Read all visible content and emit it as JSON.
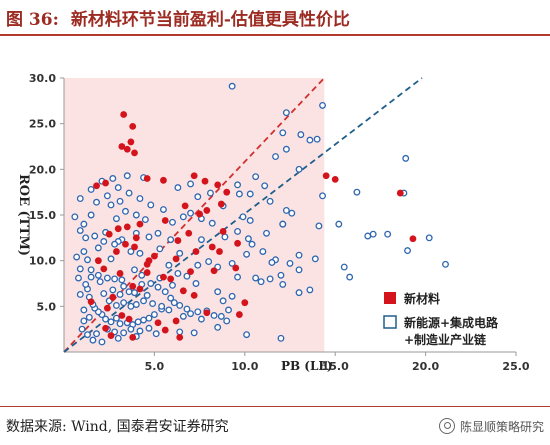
{
  "header": {
    "figure_label": "图 36:",
    "title": "新材料环节当前盈利-估值更具性价比"
  },
  "footer": {
    "source": "数据来源: Wind, 国泰君安证券研究",
    "watermark": "陈显顺策略研究"
  },
  "colors": {
    "new_material": "#d4141c",
    "new_energy": "#2f66b0",
    "shade": "#fbe3e3",
    "red_line": "#d03030",
    "blue_line": "#1f5f8b"
  },
  "chart_data": {
    "type": "scatter",
    "title": "",
    "xlabel": "PB (LF)",
    "ylabel": "ROE (TTM)",
    "xlim": [
      0,
      25
    ],
    "ylim": [
      0,
      30
    ],
    "x_ticks": [
      "5.0",
      "10.0",
      "15.0",
      "20.0",
      "25.0"
    ],
    "y_ticks": [
      "5.0",
      "10.0",
      "15.0",
      "20.0",
      "25.0",
      "30.0"
    ],
    "legend": {
      "placement": "bottom-right"
    },
    "series": [
      {
        "name": "新材料",
        "marker": "filled-square",
        "points": [
          [
            3.3,
            26.0
          ],
          [
            3.8,
            24.7
          ],
          [
            3.5,
            22.2
          ],
          [
            3.9,
            21.8
          ],
          [
            3.7,
            23.0
          ],
          [
            3.2,
            22.5
          ],
          [
            1.8,
            18.2
          ],
          [
            2.3,
            18.5
          ],
          [
            4.6,
            19.0
          ],
          [
            5.5,
            18.8
          ],
          [
            7.2,
            19.3
          ],
          [
            7.8,
            18.7
          ],
          [
            8.5,
            18.3
          ],
          [
            9.0,
            17.5
          ],
          [
            6.7,
            16.0
          ],
          [
            7.9,
            15.5
          ],
          [
            8.7,
            16.2
          ],
          [
            7.5,
            15.1
          ],
          [
            5.6,
            14.4
          ],
          [
            4.2,
            14.0
          ],
          [
            3.5,
            13.7
          ],
          [
            3.0,
            13.5
          ],
          [
            2.5,
            12.9
          ],
          [
            4.0,
            12.5
          ],
          [
            3.4,
            11.8
          ],
          [
            3.9,
            11.5
          ],
          [
            2.9,
            11.0
          ],
          [
            5.0,
            10.5
          ],
          [
            4.7,
            10.0
          ],
          [
            6.3,
            12.2
          ],
          [
            6.9,
            13.0
          ],
          [
            7.3,
            11.0
          ],
          [
            8.2,
            11.5
          ],
          [
            8.8,
            13.2
          ],
          [
            8.6,
            11.0
          ],
          [
            9.6,
            11.9
          ],
          [
            6.2,
            10.2
          ],
          [
            1.9,
            10.0
          ],
          [
            2.2,
            9.1
          ],
          [
            3.1,
            8.6
          ],
          [
            4.6,
            8.7
          ],
          [
            5.5,
            8.2
          ],
          [
            5.9,
            8.0
          ],
          [
            7.0,
            8.8
          ],
          [
            8.3,
            8.9
          ],
          [
            9.5,
            9.2
          ],
          [
            3.8,
            7.2
          ],
          [
            6.6,
            6.7
          ],
          [
            7.2,
            6.2
          ],
          [
            4.2,
            6.9
          ],
          [
            2.7,
            6.0
          ],
          [
            1.5,
            5.5
          ],
          [
            2.4,
            4.8
          ],
          [
            3.2,
            4.0
          ],
          [
            3.6,
            3.6
          ],
          [
            5.2,
            3.2
          ],
          [
            6.2,
            3.4
          ],
          [
            7.9,
            4.3
          ],
          [
            9.7,
            4.1
          ],
          [
            10.0,
            5.4
          ],
          [
            3.8,
            1.6
          ],
          [
            6.4,
            1.6
          ],
          [
            2.6,
            1.8
          ],
          [
            2.3,
            2.6
          ],
          [
            5.6,
            2.4
          ],
          [
            4.6,
            9.6
          ],
          [
            14.5,
            19.3
          ],
          [
            18.6,
            17.4
          ],
          [
            19.3,
            12.4
          ],
          [
            15.0,
            18.9
          ]
        ]
      },
      {
        "name": "新能源+集成电路+制造业产业链",
        "marker": "hollow-circle",
        "points": [
          [
            9.3,
            29.1
          ],
          [
            12.3,
            26.2
          ],
          [
            13.1,
            23.8
          ],
          [
            14.3,
            27.0
          ],
          [
            14.0,
            23.3
          ],
          [
            12.1,
            24.0
          ],
          [
            13.6,
            23.2
          ],
          [
            12.3,
            22.2
          ],
          [
            11.7,
            21.4
          ],
          [
            13.0,
            20.0
          ],
          [
            10.6,
            19.2
          ],
          [
            9.6,
            18.3
          ],
          [
            11.4,
            16.5
          ],
          [
            10.3,
            17.3
          ],
          [
            8.8,
            16.0
          ],
          [
            9.9,
            14.8
          ],
          [
            12.1,
            14.0
          ],
          [
            10.3,
            14.4
          ],
          [
            12.3,
            15.5
          ],
          [
            14.3,
            17.1
          ],
          [
            16.2,
            17.5
          ],
          [
            18.9,
            21.2
          ],
          [
            18.8,
            17.4
          ],
          [
            17.9,
            12.9
          ],
          [
            16.8,
            12.7
          ],
          [
            15.2,
            14.0
          ],
          [
            14.1,
            13.8
          ],
          [
            12.1,
            14.0
          ],
          [
            9.6,
            13.2
          ],
          [
            10.4,
            11.8
          ],
          [
            11.0,
            11.0
          ],
          [
            11.7,
            10.1
          ],
          [
            13.0,
            10.6
          ],
          [
            12.5,
            9.7
          ],
          [
            10.1,
            10.7
          ],
          [
            9.3,
            9.7
          ],
          [
            13.0,
            9.0
          ],
          [
            10.9,
            7.7
          ],
          [
            13.0,
            6.5
          ],
          [
            8.5,
            6.6
          ],
          [
            7.3,
            7.5
          ],
          [
            6.3,
            8.6
          ],
          [
            5.8,
            9.5
          ],
          [
            5.3,
            11.3
          ],
          [
            5.2,
            13.0
          ],
          [
            4.7,
            12.6
          ],
          [
            4.0,
            13.0
          ],
          [
            3.2,
            12.3
          ],
          [
            3.0,
            12.1
          ],
          [
            2.8,
            11.8
          ],
          [
            3.7,
            11.0
          ],
          [
            4.2,
            10.8
          ],
          [
            2.6,
            10.2
          ],
          [
            1.9,
            11.4
          ],
          [
            2.2,
            12.1
          ],
          [
            1.2,
            12.5
          ],
          [
            1.1,
            11.0
          ],
          [
            1.3,
            10.1
          ],
          [
            0.9,
            9.1
          ],
          [
            1.5,
            9.0
          ],
          [
            1.9,
            8.4
          ],
          [
            2.0,
            7.7
          ],
          [
            2.4,
            8.1
          ],
          [
            2.8,
            8.0
          ],
          [
            3.2,
            7.9
          ],
          [
            3.3,
            7.2
          ],
          [
            3.6,
            6.6
          ],
          [
            3.9,
            6.5
          ],
          [
            4.3,
            7.4
          ],
          [
            4.8,
            7.5
          ],
          [
            5.2,
            7.1
          ],
          [
            5.6,
            6.6
          ],
          [
            5.9,
            5.9
          ],
          [
            6.1,
            5.4
          ],
          [
            6.4,
            5.1
          ],
          [
            6.8,
            4.7
          ],
          [
            7.0,
            4.2
          ],
          [
            7.4,
            4.4
          ],
          [
            7.9,
            4.5
          ],
          [
            8.3,
            4.0
          ],
          [
            8.7,
            3.9
          ],
          [
            9.1,
            4.6
          ],
          [
            8.8,
            5.6
          ],
          [
            9.3,
            6.1
          ],
          [
            5.4,
            4.7
          ],
          [
            5.0,
            4.1
          ],
          [
            4.7,
            3.7
          ],
          [
            4.4,
            3.5
          ],
          [
            4.1,
            3.3
          ],
          [
            3.8,
            3.0
          ],
          [
            3.5,
            3.2
          ],
          [
            3.1,
            3.1
          ],
          [
            2.9,
            3.7
          ],
          [
            2.6,
            3.3
          ],
          [
            2.3,
            3.6
          ],
          [
            2.1,
            4.1
          ],
          [
            1.9,
            4.4
          ],
          [
            1.7,
            4.8
          ],
          [
            1.6,
            5.2
          ],
          [
            1.4,
            6.0
          ],
          [
            1.3,
            6.9
          ],
          [
            1.2,
            7.4
          ],
          [
            1.5,
            8.2
          ],
          [
            2.5,
            5.6
          ],
          [
            2.9,
            5.1
          ],
          [
            3.3,
            5.4
          ],
          [
            3.7,
            5.0
          ],
          [
            4.0,
            5.2
          ],
          [
            4.4,
            5.6
          ],
          [
            4.9,
            5.3
          ],
          [
            5.4,
            5.0
          ],
          [
            5.8,
            4.6
          ],
          [
            6.6,
            3.9
          ],
          [
            7.6,
            3.6
          ],
          [
            2.4,
            2.5
          ],
          [
            2.8,
            2.2
          ],
          [
            3.3,
            2.1
          ],
          [
            3.7,
            2.5
          ],
          [
            4.2,
            2.3
          ],
          [
            4.7,
            2.6
          ],
          [
            1.8,
            2.0
          ],
          [
            1.3,
            1.9
          ],
          [
            1.0,
            2.5
          ],
          [
            1.1,
            3.4
          ],
          [
            1.4,
            3.8
          ],
          [
            2.2,
            6.4
          ],
          [
            2.7,
            6.8
          ],
          [
            3.1,
            6.3
          ],
          [
            4.6,
            6.2
          ],
          [
            5.3,
            8.1
          ],
          [
            6.0,
            7.3
          ],
          [
            6.8,
            8.3
          ],
          [
            7.4,
            9.5
          ],
          [
            8.0,
            9.9
          ],
          [
            8.5,
            9.3
          ],
          [
            9.6,
            8.2
          ],
          [
            10.6,
            8.1
          ],
          [
            11.4,
            8.0
          ],
          [
            11.5,
            9.8
          ],
          [
            12.1,
            7.4
          ],
          [
            10.2,
            12.4
          ],
          [
            8.9,
            12.6
          ],
          [
            7.6,
            12.3
          ],
          [
            8.2,
            14.1
          ],
          [
            7.6,
            14.6
          ],
          [
            7.0,
            15.2
          ],
          [
            6.6,
            14.8
          ],
          [
            6.0,
            14.2
          ],
          [
            5.5,
            15.6
          ],
          [
            4.8,
            16.1
          ],
          [
            4.2,
            16.8
          ],
          [
            3.6,
            17.4
          ],
          [
            3.0,
            18.0
          ],
          [
            2.4,
            17.1
          ],
          [
            1.8,
            16.4
          ],
          [
            1.5,
            15.0
          ],
          [
            1.1,
            14.0
          ],
          [
            2.9,
            14.6
          ],
          [
            3.4,
            15.4
          ],
          [
            4.0,
            15.0
          ],
          [
            4.5,
            14.5
          ],
          [
            6.3,
            18.0
          ],
          [
            7.0,
            18.4
          ],
          [
            7.4,
            17.0
          ],
          [
            8.1,
            17.4
          ],
          [
            9.7,
            17.3
          ],
          [
            11.1,
            18.2
          ],
          [
            11.2,
            13.0
          ],
          [
            12.6,
            15.2
          ],
          [
            12.0,
            8.4
          ],
          [
            13.6,
            6.8
          ],
          [
            13.9,
            10.2
          ],
          [
            17.1,
            12.9
          ],
          [
            19.0,
            11.1
          ],
          [
            20.2,
            12.5
          ],
          [
            21.1,
            9.6
          ],
          [
            15.8,
            8.2
          ],
          [
            15.5,
            9.3
          ],
          [
            4.4,
            19.1
          ],
          [
            3.5,
            19.3
          ],
          [
            2.7,
            19.0
          ],
          [
            2.1,
            18.7
          ],
          [
            1.5,
            17.8
          ],
          [
            0.9,
            16.8
          ],
          [
            0.6,
            14.8
          ],
          [
            0.9,
            13.3
          ],
          [
            0.7,
            10.4
          ],
          [
            0.8,
            8.1
          ],
          [
            0.9,
            6.3
          ],
          [
            1.1,
            4.6
          ],
          [
            12.0,
            1.5
          ],
          [
            10.1,
            1.9
          ],
          [
            6.4,
            2.2
          ],
          [
            8.5,
            2.7
          ],
          [
            7.2,
            2.1
          ],
          [
            9.0,
            3.4
          ],
          [
            5.1,
            2.0
          ],
          [
            4.0,
            1.7
          ],
          [
            3.0,
            1.5
          ],
          [
            2.1,
            1.1
          ],
          [
            1.6,
            1.3
          ],
          [
            5.9,
            12.3
          ],
          [
            6.4,
            10.8
          ],
          [
            3.9,
            9.0
          ],
          [
            4.3,
            8.4
          ],
          [
            2.3,
            13.1
          ],
          [
            1.7,
            12.7
          ],
          [
            2.6,
            16.1
          ],
          [
            3.1,
            16.5
          ]
        ]
      }
    ],
    "reference_lines": [
      {
        "name": "red-line",
        "from": [
          0,
          0
        ],
        "to": [
          14.4,
          30.0
        ]
      },
      {
        "name": "blue-line",
        "from": [
          0,
          0
        ],
        "to": [
          19.8,
          30.0
        ]
      }
    ],
    "shaded_region": {
      "x": [
        0,
        14.4
      ],
      "y": [
        0,
        30
      ]
    }
  }
}
